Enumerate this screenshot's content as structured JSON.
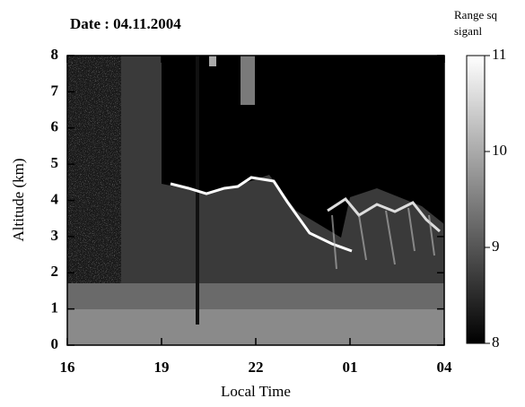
{
  "chart_data": {
    "type": "heatmap",
    "title": "Date : 04.11.2004",
    "x_label": "Local Time",
    "y_label": "Altitude (km)",
    "colorbar_label": "Range sq siganl",
    "xlim": [
      16,
      28
    ],
    "xticks": [
      16,
      19,
      22,
      {
        "value": 25,
        "label": "01"
      },
      {
        "value": 28,
        "label": "04"
      }
    ],
    "ylim": [
      0,
      8
    ],
    "yticks": [
      0,
      1,
      2,
      3,
      4,
      5,
      6,
      7,
      8
    ],
    "clim": [
      8,
      11
    ],
    "cticks": [
      8,
      9,
      10,
      11
    ],
    "colormap": [
      "#000000",
      "#ffffff"
    ]
  }
}
